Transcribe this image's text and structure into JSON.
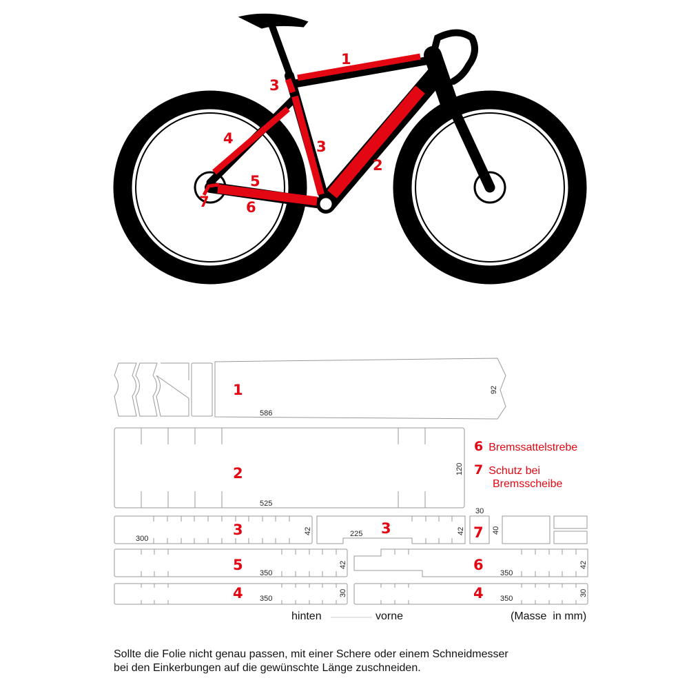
{
  "colors": {
    "accent": "#e30613",
    "frame": "#000000",
    "outline": "#999999"
  },
  "bike": {
    "labels": [
      "1",
      "2",
      "3",
      "3",
      "4",
      "5",
      "6",
      "7"
    ]
  },
  "templates": {
    "t1": {
      "number": "1",
      "length": "586",
      "height": "92"
    },
    "t2": {
      "number": "2",
      "length": "525",
      "height": "120"
    },
    "t3a": {
      "number": "3",
      "length": "300",
      "height": "42"
    },
    "t3b": {
      "number": "3",
      "length": "225",
      "height": "42"
    },
    "t7": {
      "number": "7",
      "width": "30",
      "height": "40"
    },
    "t5": {
      "number": "5",
      "length": "350",
      "height": "42"
    },
    "t6": {
      "number": "6",
      "length": "350",
      "height": "42"
    },
    "t4a": {
      "number": "4",
      "length": "350",
      "height": "30"
    },
    "t4b": {
      "number": "4",
      "length": "350",
      "height": "30"
    }
  },
  "legend": [
    {
      "number": "6",
      "label": "Bremssattelstrebe"
    },
    {
      "number": "7",
      "label": "Schutz bei",
      "label2": "Bremsscheibe"
    }
  ],
  "footer": {
    "rear": "hinten",
    "front": "vorne",
    "units": "(Masse  in mm)"
  },
  "note": {
    "line1": "Sollte die Folie nicht genau passen, mit einer Schere oder einem Schneidmesser",
    "line2": "bei den Einkerbungen auf die gewünschte Länge zuschneiden."
  }
}
